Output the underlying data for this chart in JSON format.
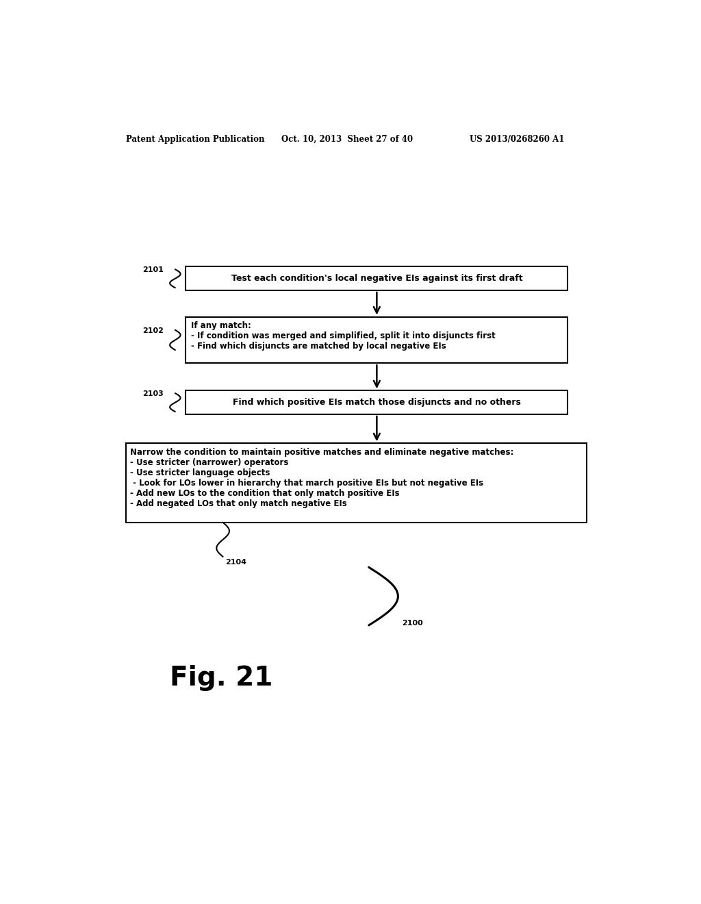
{
  "header_left": "Patent Application Publication",
  "header_mid": "Oct. 10, 2013  Sheet 27 of 40",
  "header_right": "US 2013/0268260 A1",
  "fig_label": "Fig. 21",
  "background_color": "#ffffff",
  "text_color": "#000000",
  "box1_text": "Test each condition's local negative EIs against its first draft",
  "box1_label": "2101",
  "box2_text": "If any match:\n- If condition was merged and simplified, split it into disjuncts first\n- Find which disjuncts are matched by local negative EIs",
  "box2_label": "2102",
  "box3_text": "Find which positive EIs match those disjuncts and no others",
  "box3_label": "2103",
  "box4_text": "Narrow the condition to maintain positive matches and eliminate negative matches:\n- Use stricter (narrower) operators\n- Use stricter language objects\n - Look for LOs lower in hierarchy that march positive EIs but not negative EIs\n- Add new LOs to the condition that only match positive EIs\n- Add negated LOs that only match negative EIs",
  "box4_label": "2104",
  "label_2100": "2100"
}
